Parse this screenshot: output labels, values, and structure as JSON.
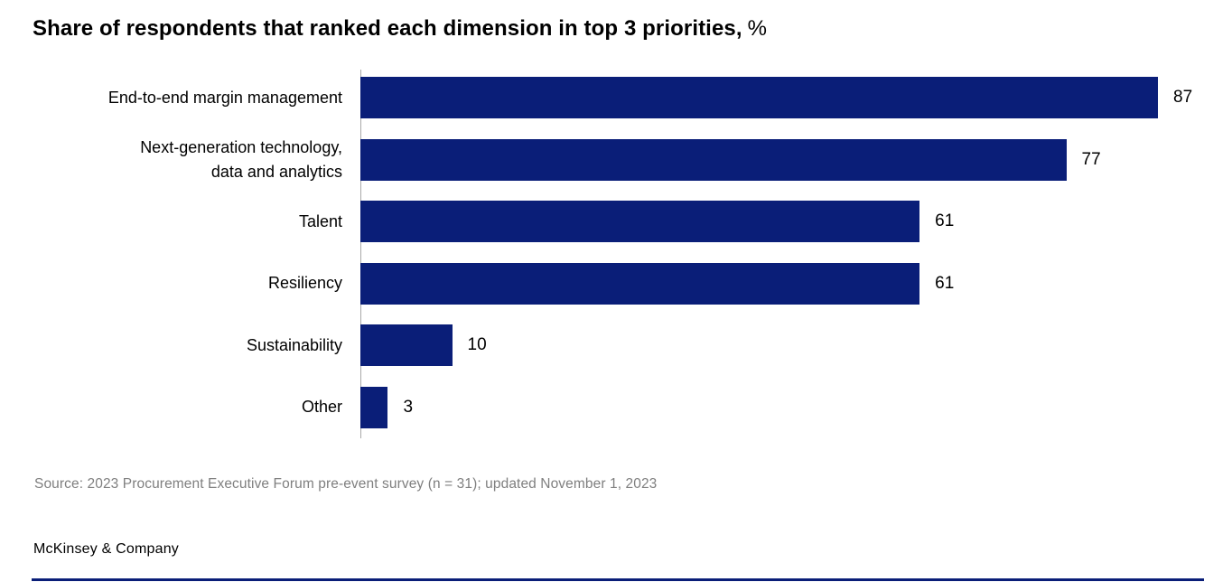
{
  "title": {
    "main": "Share of respondents that ranked each dimension in top 3 priorities,",
    "unit": "%"
  },
  "chart_data": {
    "type": "bar",
    "orientation": "horizontal",
    "title": "Share of respondents that ranked each dimension in top 3 priorities, %",
    "categories": [
      "End-to-end margin management",
      "Next-generation technology,\ndata and analytics",
      "Talent",
      "Resiliency",
      "Sustainability",
      "Other"
    ],
    "values": [
      87,
      77,
      61,
      61,
      10,
      3
    ],
    "xlabel": "",
    "ylabel": "",
    "xlim": [
      0,
      100
    ],
    "grid": false,
    "legend": false,
    "data_labels": true,
    "bar_color": "#0a1e78"
  },
  "source_note": "Source: 2023 Procurement Executive Forum pre-event survey (n = 31); updated November 1, 2023",
  "footer": {
    "brand": "McKinsey & Company"
  },
  "colors": {
    "bar": "#0a1e78",
    "accent_rule": "#0a1e78",
    "axis": "#a9a9a9",
    "source_text": "#7f7f7f",
    "text": "#000000",
    "background": "#ffffff"
  }
}
